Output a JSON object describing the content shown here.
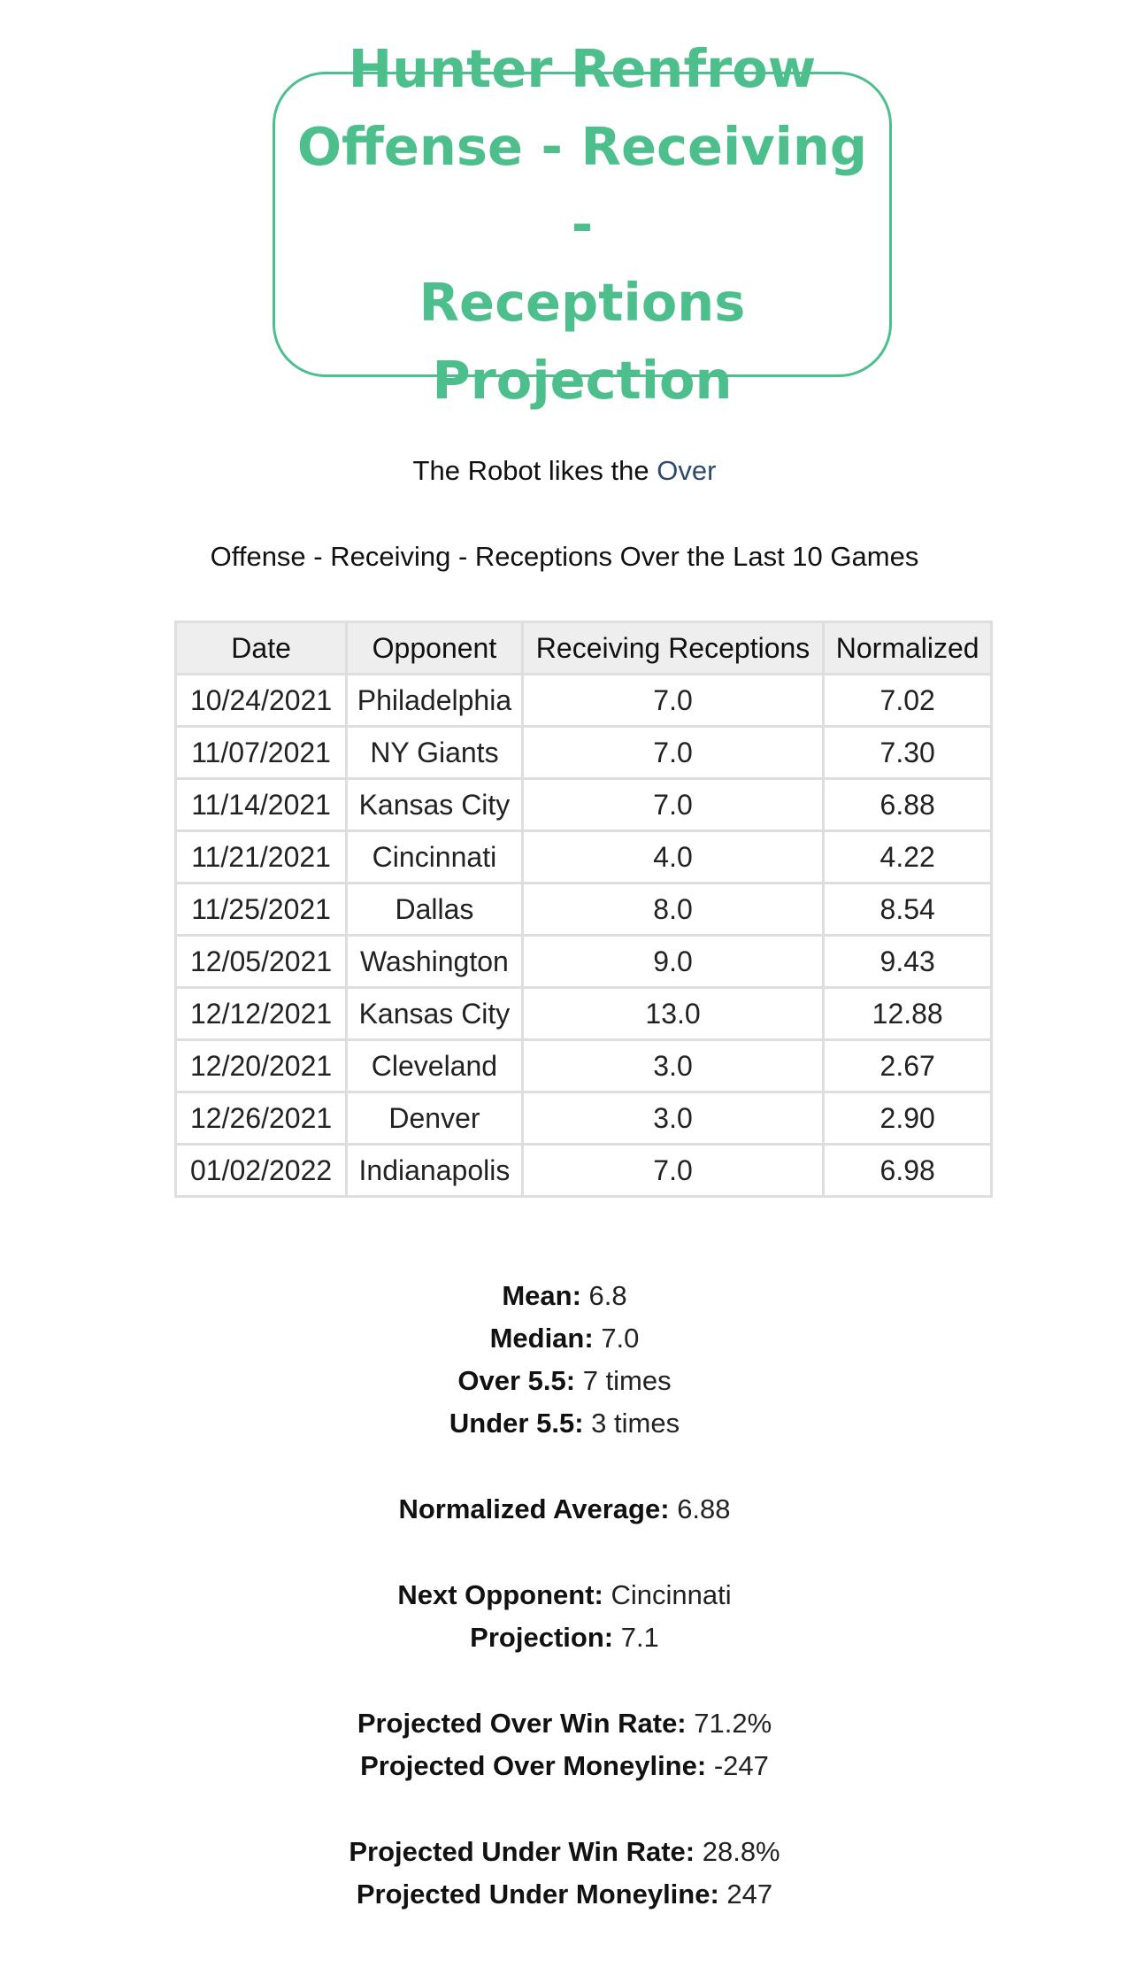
{
  "title": {
    "line1": "Hunter Renfrow",
    "line2": "Offense - Receiving -",
    "line3": "Receptions Projection"
  },
  "robot": {
    "prefix": "The Robot likes the",
    "pick": "Over"
  },
  "section_heading": "Offense - Receiving - Receptions Over the Last 10 Games",
  "table": {
    "headers": [
      "Date",
      "Opponent",
      "Receiving Receptions",
      "Normalized"
    ],
    "rows": [
      [
        "10/24/2021",
        "Philadelphia",
        "7.0",
        "7.02"
      ],
      [
        "11/07/2021",
        "NY Giants",
        "7.0",
        "7.30"
      ],
      [
        "11/14/2021",
        "Kansas City",
        "7.0",
        "6.88"
      ],
      [
        "11/21/2021",
        "Cincinnati",
        "4.0",
        "4.22"
      ],
      [
        "11/25/2021",
        "Dallas",
        "8.0",
        "8.54"
      ],
      [
        "12/05/2021",
        "Washington",
        "9.0",
        "9.43"
      ],
      [
        "12/12/2021",
        "Kansas City",
        "13.0",
        "12.88"
      ],
      [
        "12/20/2021",
        "Cleveland",
        "3.0",
        "2.67"
      ],
      [
        "12/26/2021",
        "Denver",
        "3.0",
        "2.90"
      ],
      [
        "01/02/2022",
        "Indianapolis",
        "7.0",
        "6.98"
      ]
    ]
  },
  "stats": {
    "mean_label": "Mean:",
    "mean": "6.8",
    "median_label": "Median:",
    "median": "7.0",
    "over_label": "Over 5.5:",
    "over": "7 times",
    "under_label": "Under 5.5:",
    "under": "3 times",
    "norm_avg_label": "Normalized Average:",
    "norm_avg": "6.88",
    "next_opp_label": "Next Opponent:",
    "next_opp": "Cincinnati",
    "projection_label": "Projection:",
    "projection": "7.1",
    "over_win_label": "Projected Over Win Rate:",
    "over_win": "71.2%",
    "over_ml_label": "Projected Over Moneyline:",
    "over_ml": "-247",
    "under_win_label": "Projected Under Win Rate:",
    "under_win": "28.8%",
    "under_ml_label": "Projected Under Moneyline:",
    "under_ml": "247"
  },
  "colors": {
    "title_accent": "#4dbf8c",
    "pick_color": "#2c4a6e",
    "table_border": "#dedede",
    "header_bg": "#eeeeee"
  }
}
